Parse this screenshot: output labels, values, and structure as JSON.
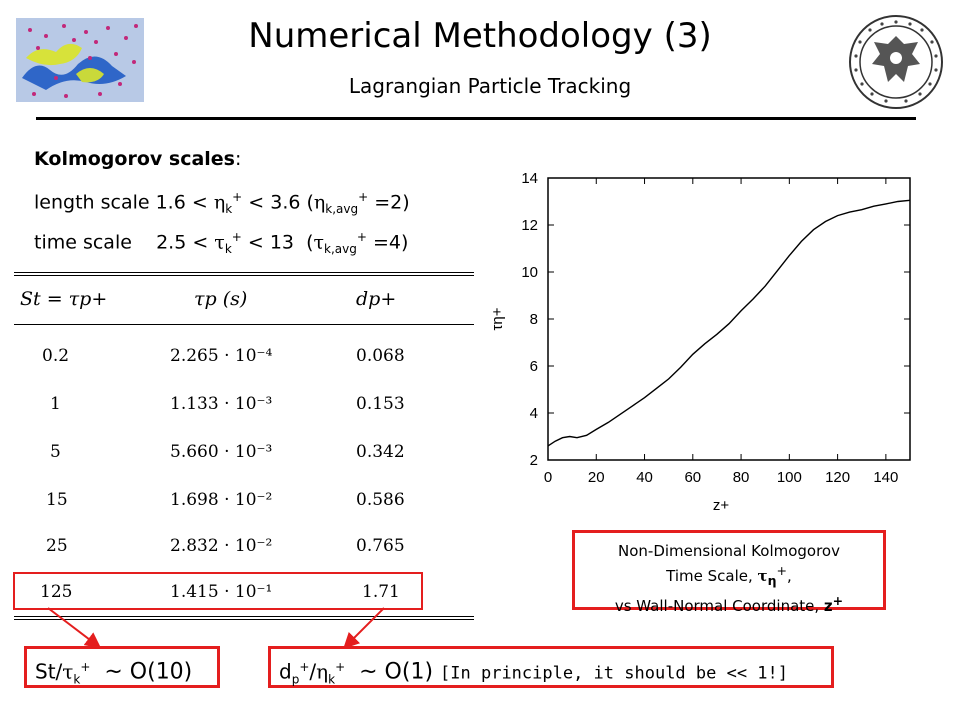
{
  "header": {
    "title": "Numerical Methodology (3)",
    "subtitle": "Lagrangian Particle Tracking"
  },
  "kolmogorov": {
    "heading_bold": "Kolmogorov  scales",
    "heading_colon": ":",
    "length": {
      "prefix": "length scale 1.6 < ",
      "sym": "η",
      "sub": "k",
      "mid": " < 3.6 (",
      "sym2": "η",
      "sub2": "k,avg",
      "suffix": " =2)"
    },
    "time": {
      "prefix": "time scale    2.5 < ",
      "sym": "τ",
      "sub": "k",
      "mid": " < 13  (",
      "sym2": "τ",
      "sub2": "k,avg",
      "suffix": " =4)"
    }
  },
  "table": {
    "headers": [
      "St = τp+",
      "τp (s)",
      "dp+"
    ],
    "rows": [
      [
        "0.2",
        "2.265 · 10⁻⁴",
        "0.068"
      ],
      [
        "1",
        "1.133 · 10⁻³",
        "0.153"
      ],
      [
        "5",
        "5.660 · 10⁻³",
        "0.342"
      ],
      [
        "15",
        "1.698 · 10⁻²",
        "0.586"
      ],
      [
        "25",
        "2.832 · 10⁻²",
        "0.765"
      ],
      [
        "125",
        "1.415 · 10⁻¹",
        "1.71"
      ]
    ]
  },
  "chart_data": {
    "type": "line",
    "xlabel": "z+",
    "ylabel": "τη+",
    "xlim": [
      0,
      150
    ],
    "ylim": [
      2,
      14
    ],
    "xticks": [
      0,
      20,
      40,
      60,
      80,
      100,
      120,
      140
    ],
    "yticks": [
      2,
      4,
      6,
      8,
      10,
      12,
      14
    ],
    "series": [
      {
        "x": [
          0,
          3,
          6,
          9,
          12,
          16,
          20,
          25,
          30,
          35,
          40,
          45,
          50,
          55,
          60,
          65,
          70,
          75,
          80,
          85,
          90,
          95,
          100,
          105,
          110,
          115,
          120,
          125,
          130,
          135,
          140,
          145,
          150
        ],
        "y": [
          2.6,
          2.8,
          2.95,
          3.0,
          2.95,
          3.05,
          3.3,
          3.6,
          3.95,
          4.3,
          4.65,
          5.05,
          5.45,
          5.95,
          6.5,
          6.95,
          7.35,
          7.8,
          8.35,
          8.85,
          9.4,
          10.05,
          10.7,
          11.3,
          11.8,
          12.15,
          12.4,
          12.55,
          12.65,
          12.8,
          12.9,
          13.0,
          13.05
        ]
      }
    ]
  },
  "caption": {
    "line1": "Non-Dimensional Kolmogorov",
    "line2_prefix": "Time Scale, ",
    "line2_sym": "τ",
    "line2_sub": "η",
    "line2_suffix": ",",
    "line3_prefix": "vs Wall-Normal Coordinate, ",
    "line3_bold": "z"
  },
  "note_left": {
    "prefix": "St/",
    "sym": "τ",
    "sub": "k",
    "suffix": "  ~ O(10)"
  },
  "note_right": {
    "prefix": "d",
    "sub": "p",
    "mid": "/",
    "sym": "η",
    "sub2": "k",
    "big": "  ~ O(1) ",
    "mono": "[In principle, it should be << 1!]"
  },
  "colors": {
    "accent_red": "#e41e1e"
  }
}
